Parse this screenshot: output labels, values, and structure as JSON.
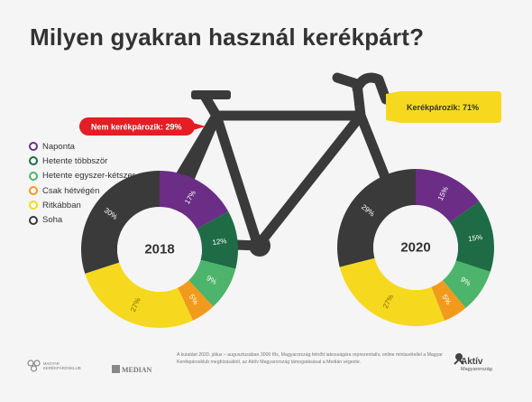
{
  "title": "Milyen gyakran használ kerékpárt?",
  "legend": [
    {
      "label": "Naponta",
      "color": "#6b2d86"
    },
    {
      "label": "Hetente többször",
      "color": "#1e6b45"
    },
    {
      "label": "Hetente egyszer-kétszer",
      "color": "#4db46b"
    },
    {
      "label": "Csak hétvégén",
      "color": "#f29a1b"
    },
    {
      "label": "Ritkábban",
      "color": "#f6d91e"
    },
    {
      "label": "Soha",
      "color": "#3a3a3a"
    }
  ],
  "callouts": {
    "non_cyclists": "Nem kerékpározik: 29%",
    "cyclists": "Kerékpározik: 71%"
  },
  "chart_data": [
    {
      "type": "pie",
      "title": "2018",
      "categories": [
        "Naponta",
        "Hetente többször",
        "Hetente egyszer-kétszer",
        "Csak hétvégén",
        "Ritkábban",
        "Soha"
      ],
      "values": [
        17,
        12,
        9,
        5,
        27,
        30
      ],
      "labels": [
        "17%",
        "12%",
        "9%",
        "5%",
        "27%",
        "30%"
      ]
    },
    {
      "type": "pie",
      "title": "2020",
      "categories": [
        "Naponta",
        "Hetente többször",
        "Hetente egyszer-kétszer",
        "Csak hétvégén",
        "Ritkábban",
        "Soha"
      ],
      "values": [
        15,
        15,
        9,
        5,
        27,
        29
      ],
      "labels": [
        "15%",
        "15%",
        "9%",
        "5%",
        "27%",
        "29%"
      ]
    }
  ],
  "footer": {
    "logo1_line1": "MAGYAR",
    "logo1_line2": "KERÉKPÁROSKLUB",
    "logo2": "MEDIAN",
    "logo3_line1": "Aktív",
    "logo3_line2": "Magyarország",
    "note": "A kutatást 2020. július – augusztusában 3000 fős, Magyarország felnőtt lakosságára reprezentatív, online mintavétellel a Magyar Kerékpárosklub megbízásából, az Aktív Magyarország támogatásával a Medián végezte."
  }
}
